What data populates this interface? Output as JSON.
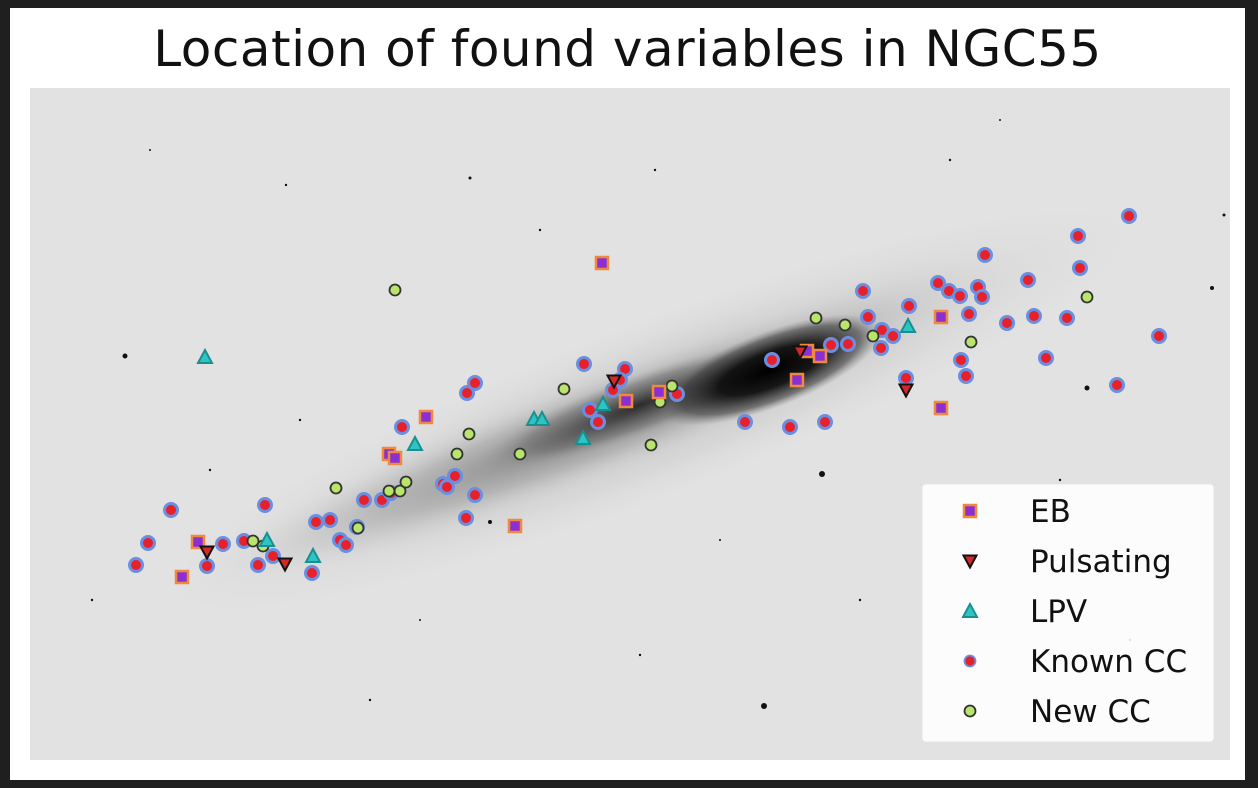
{
  "chart_data": {
    "type": "scatter",
    "title": "Location of found variables in NGC55",
    "xlabel": "",
    "ylabel": "",
    "grid": false,
    "legend_position": "bottom-right",
    "background": "grayscale astronomical image of galaxy NGC55",
    "series": [
      {
        "name": "EB",
        "marker": "square",
        "face": "#8b2fd1",
        "edge": "#f08a3a",
        "points": [
          [
            602,
            263
          ],
          [
            941,
            317
          ],
          [
            941,
            408
          ],
          [
            515,
            526
          ],
          [
            426,
            417
          ],
          [
            626,
            401
          ],
          [
            797,
            380
          ],
          [
            820,
            356
          ],
          [
            389,
            454
          ],
          [
            395,
            458
          ],
          [
            198,
            542
          ],
          [
            182,
            577
          ],
          [
            659,
            392
          ],
          [
            807,
            351
          ]
        ]
      },
      {
        "name": "Pulsating",
        "marker": "triangle_down",
        "face": "#d62728",
        "edge": "#111111",
        "points": [
          [
            207,
            552
          ],
          [
            285,
            564
          ],
          [
            614,
            381
          ],
          [
            906,
            390
          ],
          [
            800,
            352
          ]
        ]
      },
      {
        "name": "LPV",
        "marker": "triangle_up",
        "face": "#2ec4c4",
        "edge": "#1a8f8f",
        "points": [
          [
            205,
            357
          ],
          [
            415,
            444
          ],
          [
            534,
            419
          ],
          [
            542,
            419
          ],
          [
            583,
            438
          ],
          [
            603,
            404
          ],
          [
            313,
            556
          ],
          [
            267,
            540
          ],
          [
            908,
            326
          ]
        ]
      },
      {
        "name": "Known CC",
        "marker": "circle",
        "face": "#e8202a",
        "edge": "#6a8fe0",
        "points": [
          [
            136,
            565
          ],
          [
            148,
            543
          ],
          [
            171,
            510
          ],
          [
            207,
            566
          ],
          [
            223,
            544
          ],
          [
            244,
            541
          ],
          [
            258,
            565
          ],
          [
            273,
            556
          ],
          [
            265,
            505
          ],
          [
            312,
            573
          ],
          [
            316,
            522
          ],
          [
            330,
            520
          ],
          [
            340,
            540
          ],
          [
            346,
            545
          ],
          [
            357,
            527
          ],
          [
            364,
            500
          ],
          [
            382,
            500
          ],
          [
            391,
            493
          ],
          [
            402,
            427
          ],
          [
            443,
            484
          ],
          [
            455,
            476
          ],
          [
            447,
            487
          ],
          [
            475,
            495
          ],
          [
            466,
            518
          ],
          [
            467,
            393
          ],
          [
            475,
            383
          ],
          [
            584,
            364
          ],
          [
            590,
            410
          ],
          [
            598,
            422
          ],
          [
            625,
            369
          ],
          [
            620,
            380
          ],
          [
            677,
            394
          ],
          [
            745,
            422
          ],
          [
            772,
            360
          ],
          [
            790,
            427
          ],
          [
            825,
            422
          ],
          [
            863,
            291
          ],
          [
            868,
            317
          ],
          [
            882,
            330
          ],
          [
            893,
            336
          ],
          [
            881,
            348
          ],
          [
            909,
            306
          ],
          [
            938,
            283
          ],
          [
            949,
            291
          ],
          [
            960,
            296
          ],
          [
            978,
            287
          ],
          [
            982,
            297
          ],
          [
            969,
            314
          ],
          [
            961,
            360
          ],
          [
            966,
            376
          ],
          [
            985,
            255
          ],
          [
            1007,
            323
          ],
          [
            1028,
            280
          ],
          [
            1034,
            316
          ],
          [
            1046,
            358
          ],
          [
            1067,
            318
          ],
          [
            1080,
            268
          ],
          [
            1078,
            236
          ],
          [
            1117,
            385
          ],
          [
            1129,
            216
          ],
          [
            1159,
            336
          ],
          [
            906,
            378
          ],
          [
            848,
            344
          ],
          [
            831,
            345
          ],
          [
            613,
            390
          ]
        ]
      },
      {
        "name": "New CC",
        "marker": "circle",
        "face": "#b9e56b",
        "edge": "#333333",
        "points": [
          [
            395,
            290
          ],
          [
            336,
            488
          ],
          [
            358,
            528
          ],
          [
            389,
            491
          ],
          [
            400,
            491
          ],
          [
            406,
            482
          ],
          [
            457,
            454
          ],
          [
            469,
            434
          ],
          [
            520,
            454
          ],
          [
            564,
            389
          ],
          [
            651,
            445
          ],
          [
            660,
            402
          ],
          [
            672,
            386
          ],
          [
            816,
            318
          ],
          [
            845,
            325
          ],
          [
            873,
            336
          ],
          [
            971,
            342
          ],
          [
            1087,
            297
          ],
          [
            253,
            541
          ],
          [
            263,
            546
          ]
        ]
      }
    ]
  }
}
